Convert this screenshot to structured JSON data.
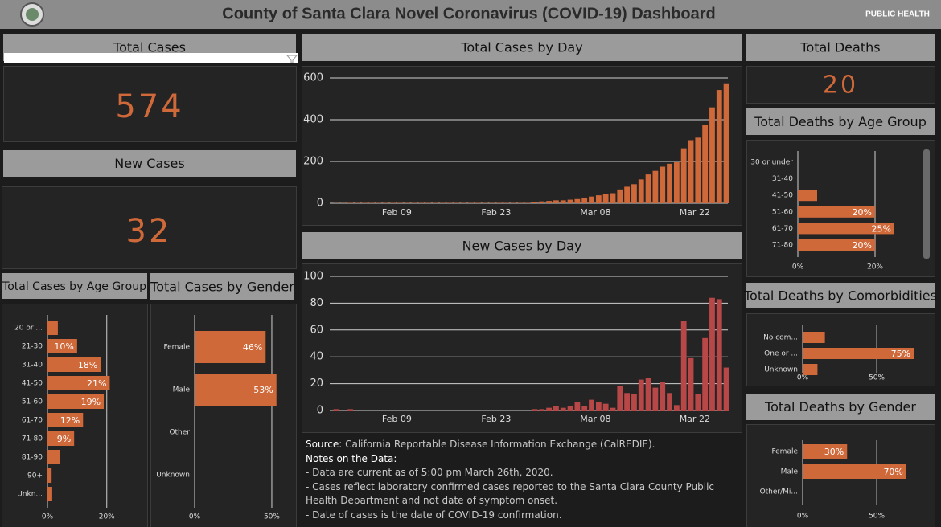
{
  "header": {
    "title": "County of Santa Clara Novel Coronavirus (COVID-19) Dashboard",
    "logo_text": "PUBLIC HEALTH"
  },
  "kpis": [
    {
      "title": "Total Cases",
      "value": 574
    },
    {
      "title": "New Cases",
      "value": 32
    },
    {
      "title": "Total Deaths",
      "value": 20
    }
  ],
  "chart_data": [
    {
      "type": "bar",
      "title": "Total Cases by Day",
      "color": "#d0693a",
      "grid": true,
      "categories": [
        null,
        null,
        null,
        null,
        null,
        null,
        null,
        null,
        null,
        "Feb 09",
        null,
        null,
        null,
        null,
        null,
        null,
        null,
        null,
        null,
        null,
        null,
        null,
        null,
        "Feb 23",
        null,
        null,
        null,
        null,
        null,
        null,
        null,
        null,
        null,
        null,
        null,
        null,
        null,
        "Mar 08",
        null,
        null,
        null,
        null,
        null,
        null,
        null,
        null,
        null,
        null,
        null,
        null,
        null,
        "Mar 22",
        null,
        null,
        null,
        null
      ],
      "values": [
        1,
        1,
        2,
        2,
        2,
        2,
        2,
        2,
        2,
        2,
        2,
        2,
        2,
        2,
        2,
        2,
        2,
        2,
        2,
        2,
        2,
        2,
        2,
        2,
        2,
        2,
        2,
        2,
        7,
        9,
        11,
        14,
        14,
        17,
        20,
        24,
        32,
        38,
        43,
        48,
        66,
        79,
        91,
        114,
        138,
        155,
        175,
        189,
        196,
        263,
        302,
        314,
        375,
        459,
        542,
        574
      ],
      "ylim": [
        0,
        600
      ],
      "yticks": [
        0,
        200,
        400,
        600
      ]
    },
    {
      "type": "bar",
      "title": "New Cases by Day",
      "color": "#b84848",
      "grid": true,
      "categories": [
        null,
        null,
        null,
        null,
        null,
        null,
        null,
        null,
        null,
        "Feb 09",
        null,
        null,
        null,
        null,
        null,
        null,
        null,
        null,
        null,
        null,
        null,
        null,
        null,
        "Feb 23",
        null,
        null,
        null,
        null,
        null,
        null,
        null,
        null,
        null,
        null,
        null,
        null,
        null,
        "Mar 08",
        null,
        null,
        null,
        null,
        null,
        null,
        null,
        null,
        null,
        null,
        null,
        null,
        null,
        "Mar 22",
        null,
        null,
        null,
        null
      ],
      "values": [
        1,
        0,
        1,
        0,
        0,
        0,
        0,
        0,
        0,
        0,
        0,
        0,
        0,
        0,
        0,
        0,
        0,
        0,
        0,
        0,
        0,
        0,
        0,
        0,
        0,
        0,
        0,
        0,
        1,
        1,
        2,
        3,
        2,
        3,
        6,
        3,
        8,
        6,
        5,
        2,
        18,
        13,
        12,
        23,
        24,
        17,
        21,
        13,
        4,
        67,
        39,
        12,
        54,
        84,
        83,
        32
      ],
      "ylim": [
        0,
        100
      ],
      "yticks": [
        0,
        20,
        40,
        60,
        80,
        100
      ]
    },
    {
      "type": "barh",
      "title": "Total Cases by Age Group",
      "color": "#d0693a",
      "grid": true,
      "categories": [
        "20 or ...",
        "21-30",
        "31-40",
        "41-50",
        "51-60",
        "61-70",
        "71-80",
        "81-90",
        "90+",
        "Unkn..."
      ],
      "values": [
        3.5,
        10,
        18,
        21,
        19,
        12,
        9,
        4.3,
        1.4,
        1.6
      ],
      "value_labels": [
        null,
        "10%",
        "18%",
        "21%",
        "19%",
        "12%",
        "9%",
        null,
        null,
        null
      ],
      "xlim": [
        0,
        32
      ],
      "xticks": [
        {
          "value": 0,
          "label": "0%"
        },
        {
          "value": 20,
          "label": "20%"
        }
      ]
    },
    {
      "type": "barh",
      "title": "Total Cases by Gender",
      "color": "#d0693a",
      "grid": true,
      "categories": [
        "Female",
        "Male",
        "Other",
        "Unknown"
      ],
      "values": [
        46,
        53,
        0.3,
        0.3
      ],
      "value_labels": [
        "46%",
        "53%",
        null,
        null
      ],
      "xlim": [
        0,
        62
      ],
      "xticks": [
        {
          "value": 0,
          "label": "0%"
        },
        {
          "value": 50,
          "label": "50%"
        }
      ]
    },
    {
      "type": "barh",
      "title": "Total Deaths by Age Group",
      "color": "#d0693a",
      "grid": true,
      "categories": [
        "30 or under",
        "31-40",
        "41-50",
        "51-60",
        "61-70",
        "71-80"
      ],
      "values": [
        0,
        0,
        5,
        20,
        25,
        20
      ],
      "value_labels": [
        null,
        null,
        null,
        "20%",
        "25%",
        "20%"
      ],
      "xlim": [
        0,
        30
      ],
      "xticks": [
        {
          "value": 0,
          "label": "0%"
        },
        {
          "value": 20,
          "label": "20%"
        }
      ]
    },
    {
      "type": "barh",
      "title": "Total Deaths by Comorbidities",
      "color": "#d0693a",
      "grid": true,
      "categories": [
        "No com...",
        "One or ...",
        "Unknown"
      ],
      "values": [
        15,
        75,
        10
      ],
      "value_labels": [
        null,
        "75%",
        null
      ],
      "xlim": [
        0,
        82
      ],
      "xticks": [
        {
          "value": 0,
          "label": "0%"
        },
        {
          "value": 50,
          "label": "50%"
        }
      ]
    },
    {
      "type": "barh",
      "title": "Total Deaths by Gender",
      "color": "#d0693a",
      "grid": true,
      "categories": [
        "Female",
        "Male",
        "Other/Mi..."
      ],
      "values": [
        30,
        70,
        0
      ],
      "value_labels": [
        "30%",
        "70%",
        null
      ],
      "xlim": [
        0,
        82
      ],
      "xticks": [
        {
          "value": 0,
          "label": "0%"
        },
        {
          "value": 50,
          "label": "50%"
        }
      ]
    }
  ],
  "notes": {
    "source_label": "Source:",
    "source": "California Reportable Disease Information Exchange (CalREDIE).",
    "heading": "Notes on the Data:",
    "items": [
      "- Data are current as of 5:00 pm March 26th, 2020.",
      "- Cases reflect laboratory confirmed cases reported to the Santa Clara County Public Health Department and not date of symptom onset.",
      "- Date of cases is the date of COVID-19 confirmation."
    ]
  }
}
